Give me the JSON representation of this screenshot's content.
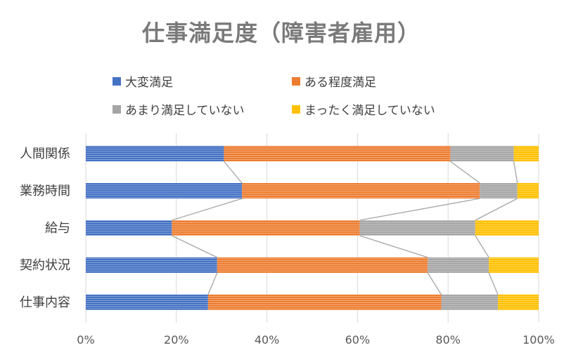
{
  "chart_data": {
    "type": "bar",
    "orientation": "horizontal",
    "stacked": "percent",
    "title": "仕事満足度（障害者雇用）",
    "categories": [
      "人間関係",
      "業務時間",
      "給与",
      "契約状況",
      "仕事内容"
    ],
    "series": [
      {
        "name": "大変満足",
        "values": [
          30.5,
          34.5,
          19,
          29,
          27
        ],
        "color": "#4472c4"
      },
      {
        "name": "ある程度満足",
        "values": [
          50,
          52.5,
          41.5,
          46.5,
          51.5
        ],
        "color": "#ed7d31"
      },
      {
        "name": "あまり満足していない",
        "values": [
          14,
          8.3,
          25.5,
          13.5,
          12.5
        ],
        "color": "#a5a5a5"
      },
      {
        "name": "まったく満足していない",
        "values": [
          5.5,
          4.7,
          14,
          11,
          9
        ],
        "color": "#ffc000"
      }
    ],
    "x_ticks": [
      "0%",
      "20%",
      "40%",
      "60%",
      "80%",
      "100%"
    ],
    "xlim": [
      0,
      100
    ],
    "series_lines": true,
    "grid": true,
    "legend_position": "top"
  }
}
